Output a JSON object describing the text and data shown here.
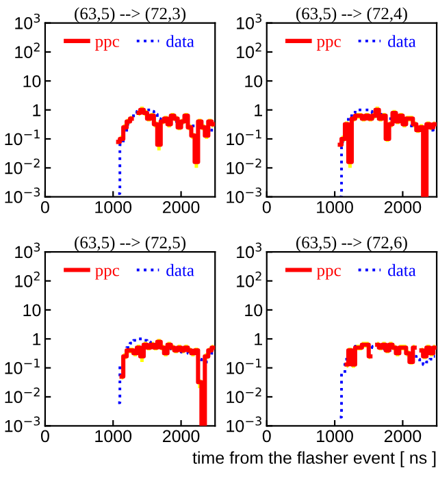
{
  "chart_data": [
    {
      "type": "step",
      "title": "(63,5) --> (72,3)",
      "legend": "top",
      "log": "y",
      "xlim": [
        0,
        2500
      ],
      "ylim": [
        0.001,
        1000
      ],
      "xticks": [
        0,
        1000,
        2000
      ],
      "yticks": [
        {
          "value": 1000,
          "label": "10$^{3}$"
        },
        {
          "value": 100,
          "label": "10$^{2}$"
        },
        {
          "value": 10,
          "label": "10"
        },
        {
          "value": 1,
          "label": "1"
        },
        {
          "value": 0.1,
          "label": "10$^{−1}$"
        },
        {
          "value": 0.01,
          "label": "10$^{−2}$"
        },
        {
          "value": 0.001,
          "label": "10$^{−3}$"
        }
      ],
      "x": [
        1075,
        1125,
        1175,
        1225,
        1275,
        1325,
        1375,
        1425,
        1475,
        1525,
        1575,
        1625,
        1675,
        1725,
        1775,
        1825,
        1875,
        1925,
        1975,
        2025,
        2075,
        2125,
        2175,
        2225,
        2275,
        2325,
        2375,
        2425,
        2475
      ],
      "series": [
        {
          "name": "ppc",
          "color": "#ff0000",
          "line_style": "solid",
          "values": [
            0.079,
            0.1,
            0.25,
            0.4,
            0.5,
            null,
            0.79,
            1,
            0.79,
            0.5,
            0.63,
            0.32,
            0.063,
            0.4,
            0.5,
            0.32,
            0.63,
            0.5,
            0.25,
            0.4,
            0.63,
            0.25,
            0.13,
            0.016,
            0.4,
            0.25,
            0.13,
            0.4,
            0.32
          ],
          "upper": [
            0.1,
            0.13,
            0.32,
            0.5,
            0.63,
            null,
            1,
            1.3,
            1,
            0.63,
            0.79,
            0.4,
            0.079,
            0.5,
            0.63,
            0.4,
            0.79,
            0.63,
            0.32,
            0.5,
            0.79,
            0.32,
            0.16,
            0.02,
            0.5,
            0.32,
            0.16,
            0.5,
            0.4
          ],
          "lower": [
            0.063,
            0.079,
            0.2,
            0.32,
            0.4,
            null,
            0.63,
            0.79,
            0.63,
            0.4,
            0.5,
            0.25,
            0.04,
            0.32,
            0.4,
            0.25,
            0.5,
            0.4,
            0.2,
            0.32,
            0.5,
            0.2,
            0.1,
            0.01,
            0.32,
            0.2,
            0.1,
            0.32,
            0.25
          ]
        },
        {
          "name": "data",
          "color": "#0000ff",
          "line_style": "dotted",
          "values": [
            0.0013,
            0.063,
            0.16,
            0.32,
            0.5,
            0.71,
            0.89,
            1,
            1,
            1,
            0.89,
            0.71,
            0.5,
            0.45,
            0.4,
            0.4,
            0.45,
            0.4,
            0.35,
            0.35,
            0.32,
            0.32,
            0.28,
            0.25,
            0.28,
            0.25,
            0.2,
            0.18,
            0.25
          ]
        }
      ]
    },
    {
      "type": "step",
      "title": "(63,5) --> (72,4)",
      "legend": "top",
      "log": "y",
      "xlim": [
        0,
        2500
      ],
      "ylim": [
        0.001,
        1000
      ],
      "xticks": [
        0,
        1000,
        2000
      ],
      "yticks": [
        {
          "value": 1000,
          "label": "10$^{3}$"
        },
        {
          "value": 100,
          "label": "10$^{2}$"
        },
        {
          "value": 10,
          "label": "10"
        },
        {
          "value": 1,
          "label": "1"
        },
        {
          "value": 0.1,
          "label": "10$^{−1}$"
        },
        {
          "value": 0.01,
          "label": "10$^{−2}$"
        },
        {
          "value": 0.001,
          "label": "10$^{−3}$"
        }
      ],
      "x": [
        1075,
        1125,
        1175,
        1225,
        1275,
        1325,
        1375,
        1425,
        1475,
        1525,
        1575,
        1625,
        1675,
        1725,
        1775,
        1825,
        1875,
        1925,
        1975,
        2025,
        2075,
        2125,
        2175,
        2225,
        2275,
        2325,
        2375,
        2425,
        2475
      ],
      "series": [
        {
          "name": "ppc",
          "color": "#ff0000",
          "line_style": "solid",
          "values": [
            0.063,
            0.1,
            0.32,
            0.016,
            0.5,
            0.63,
            0.63,
            0.5,
            0.63,
            0.5,
            0.63,
            1,
            0.5,
            0.63,
            0.1,
            0.32,
            0.79,
            0.4,
            0.63,
            0.32,
            0.5,
            0.5,
            0.32,
            0.2,
            0.25,
            0.001,
            0.32,
            0.25,
            0.32
          ],
          "upper": [
            0.079,
            0.13,
            0.4,
            0.02,
            0.63,
            0.79,
            0.79,
            0.63,
            0.79,
            0.63,
            0.79,
            1.3,
            0.63,
            0.79,
            0.13,
            0.4,
            1,
            0.5,
            0.79,
            0.4,
            0.63,
            0.63,
            0.4,
            0.25,
            0.32,
            0.0013,
            0.4,
            0.32,
            0.4
          ],
          "lower": [
            0.05,
            0.079,
            0.25,
            0.01,
            0.4,
            0.5,
            0.5,
            0.4,
            0.5,
            0.4,
            0.5,
            0.79,
            0.4,
            0.5,
            0.079,
            0.25,
            0.63,
            0.32,
            0.5,
            0.25,
            0.4,
            0.4,
            0.25,
            0.16,
            0.2,
            0.001,
            0.25,
            0.2,
            0.25
          ]
        },
        {
          "name": "data",
          "color": "#0000ff",
          "line_style": "dotted",
          "values": [
            0.001,
            0.079,
            0.32,
            0.63,
            0.79,
            1,
            1,
            1,
            1,
            0.89,
            0.79,
            0.89,
            0.71,
            0.63,
            0.56,
            0.5,
            0.5,
            0.45,
            0.4,
            0.35,
            0.32,
            0.28,
            0.25,
            0.2,
            0.2,
            0.18,
            0.2,
            0.2,
            0.25
          ]
        }
      ]
    },
    {
      "type": "step",
      "title": "(63,5) --> (72,5)",
      "legend": "top",
      "log": "y",
      "xlim": [
        0,
        2500
      ],
      "ylim": [
        0.001,
        1000
      ],
      "xticks": [
        0,
        1000,
        2000
      ],
      "yticks": [
        {
          "value": 1000,
          "label": "10$^{3}$"
        },
        {
          "value": 100,
          "label": "10$^{2}$"
        },
        {
          "value": 10,
          "label": "10"
        },
        {
          "value": 1,
          "label": "1"
        },
        {
          "value": 0.1,
          "label": "10$^{−1}$"
        },
        {
          "value": 0.01,
          "label": "10$^{−2}$"
        },
        {
          "value": 0.001,
          "label": "10$^{−3}$"
        }
      ],
      "x": [
        1075,
        1125,
        1175,
        1225,
        1275,
        1325,
        1375,
        1425,
        1475,
        1525,
        1575,
        1625,
        1675,
        1725,
        1775,
        1825,
        1875,
        1925,
        1975,
        2025,
        2075,
        2125,
        2175,
        2225,
        2275,
        2325,
        2375,
        2425,
        2475
      ],
      "series": [
        {
          "name": "ppc",
          "color": "#ff0000",
          "line_style": "solid",
          "values": [
            null,
            0.05,
            0.25,
            0.4,
            0.4,
            0.32,
            0.5,
            0.25,
            0.63,
            0.5,
            0.63,
            0.5,
            0.79,
            0.5,
            0.32,
            0.63,
            0.5,
            0.4,
            0.5,
            0.4,
            0.5,
            0.4,
            0.32,
            0.4,
            0.032,
            0.001,
            0.25,
            0.4,
            0.5
          ],
          "upper": [
            null,
            0.063,
            0.32,
            0.5,
            0.5,
            0.4,
            0.63,
            0.32,
            0.79,
            0.63,
            0.79,
            0.63,
            1,
            0.63,
            0.4,
            0.79,
            0.63,
            0.5,
            0.63,
            0.5,
            0.63,
            0.5,
            0.4,
            0.5,
            0.04,
            0.0013,
            0.32,
            0.5,
            0.63
          ],
          "lower": [
            null,
            0.04,
            0.2,
            0.32,
            0.32,
            0.25,
            0.4,
            0.16,
            0.5,
            0.4,
            0.5,
            0.4,
            0.63,
            0.4,
            0.25,
            0.5,
            0.4,
            0.32,
            0.4,
            0.32,
            0.4,
            0.32,
            0.25,
            0.32,
            0.02,
            0.001,
            0.2,
            0.32,
            0.4
          ]
        },
        {
          "name": "data",
          "color": "#0000ff",
          "line_style": "dotted",
          "values": [
            0.0063,
            0.13,
            0.32,
            0.5,
            0.71,
            0.89,
            1,
            1,
            0.89,
            0.79,
            0.71,
            0.63,
            0.5,
            0.5,
            0.45,
            0.5,
            0.45,
            0.4,
            0.4,
            0.35,
            0.35,
            0.32,
            0.32,
            0.28,
            0.2,
            0.16,
            0.16,
            0.25,
            0.32
          ]
        }
      ]
    },
    {
      "type": "step",
      "title": "(63,5) --> (72,6)",
      "xlabel": "time from the flasher event [ ns ]",
      "legend": "top",
      "log": "y",
      "xlim": [
        0,
        2500
      ],
      "ylim": [
        0.001,
        1000
      ],
      "xticks": [
        0,
        1000,
        2000
      ],
      "yticks": [
        {
          "value": 1000,
          "label": "10$^{3}$"
        },
        {
          "value": 100,
          "label": "10$^{2}$"
        },
        {
          "value": 10,
          "label": "10"
        },
        {
          "value": 1,
          "label": "1"
        },
        {
          "value": 0.1,
          "label": "10$^{−1}$"
        },
        {
          "value": 0.01,
          "label": "10$^{−2}$"
        },
        {
          "value": 0.001,
          "label": "10$^{−3}$"
        }
      ],
      "x": [
        1075,
        1125,
        1175,
        1225,
        1275,
        1325,
        1375,
        1425,
        1475,
        1525,
        1575,
        1625,
        1675,
        1725,
        1775,
        1825,
        1875,
        1925,
        1975,
        2025,
        2075,
        2125,
        2175,
        2225,
        2275,
        2325,
        2375,
        2425,
        2475
      ],
      "series": [
        {
          "name": "ppc",
          "color": "#ff0000",
          "line_style": "solid",
          "values": [
            null,
            null,
            0.13,
            0.4,
            0.13,
            0.5,
            0.5,
            0.63,
            0.63,
            0.25,
            null,
            0.63,
            0.5,
            0.63,
            0.4,
            0.63,
            0.5,
            0.32,
            0.5,
            0.5,
            0.32,
            0.16,
            0.5,
            null,
            0.4,
            0.25,
            0.5,
            0.32,
            0.5
          ],
          "upper": [
            null,
            null,
            0.16,
            0.5,
            0.16,
            0.63,
            0.63,
            0.79,
            0.79,
            0.32,
            null,
            0.79,
            0.63,
            0.79,
            0.5,
            0.79,
            0.63,
            0.4,
            0.63,
            0.63,
            0.4,
            0.2,
            0.63,
            null,
            0.5,
            0.32,
            0.63,
            0.4,
            0.63
          ],
          "lower": [
            null,
            null,
            0.1,
            0.32,
            0.1,
            0.4,
            0.4,
            0.5,
            0.5,
            0.2,
            null,
            0.5,
            0.4,
            0.5,
            0.32,
            0.5,
            0.4,
            0.25,
            0.4,
            0.4,
            0.25,
            0.13,
            0.4,
            null,
            0.32,
            0.2,
            0.4,
            0.25,
            0.4
          ]
        },
        {
          "name": "data",
          "color": "#0000ff",
          "line_style": "dotted",
          "values": [
            0.002,
            0.063,
            0.2,
            0.4,
            0.5,
            0.56,
            0.56,
            0.63,
            0.63,
            0.56,
            0.5,
            0.5,
            0.45,
            0.45,
            0.4,
            0.4,
            0.45,
            0.4,
            0.35,
            0.35,
            0.32,
            0.28,
            0.25,
            0.2,
            0.16,
            0.13,
            0.16,
            0.2,
            0.25
          ]
        }
      ]
    }
  ]
}
